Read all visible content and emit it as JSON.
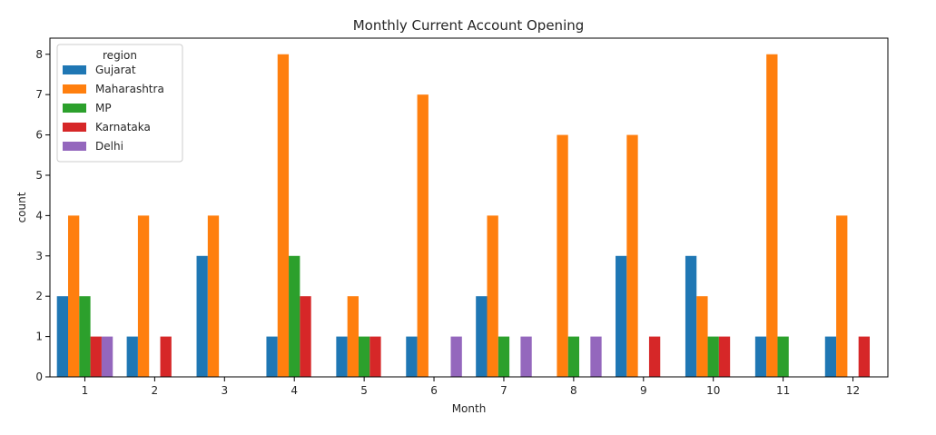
{
  "chart_data": {
    "type": "bar",
    "title": "Monthly Current Account Opening",
    "xlabel": "Month",
    "ylabel": "count",
    "ylim": [
      0,
      8.4
    ],
    "yticks": [
      0,
      1,
      2,
      3,
      4,
      5,
      6,
      7,
      8
    ],
    "grid": false,
    "legend": {
      "title": "region",
      "placement": "top-left"
    },
    "categories": [
      "1",
      "2",
      "3",
      "4",
      "5",
      "6",
      "7",
      "8",
      "9",
      "10",
      "11",
      "12"
    ],
    "series": [
      {
        "name": "Gujarat",
        "color": "#1f77b4",
        "values": [
          2,
          1,
          3,
          1,
          1,
          1,
          2,
          0,
          3,
          3,
          1,
          1
        ]
      },
      {
        "name": "Maharashtra",
        "color": "#ff7f0e",
        "values": [
          4,
          4,
          4,
          8,
          2,
          7,
          4,
          6,
          6,
          2,
          8,
          4
        ]
      },
      {
        "name": "MP",
        "color": "#2ca02c",
        "values": [
          2,
          0,
          0,
          3,
          1,
          0,
          1,
          1,
          0,
          1,
          1,
          0
        ]
      },
      {
        "name": "Karnataka",
        "color": "#d62728",
        "values": [
          1,
          1,
          0,
          2,
          1,
          0,
          0,
          0,
          1,
          1,
          0,
          1
        ]
      },
      {
        "name": "Delhi",
        "color": "#9467bd",
        "values": [
          1,
          0,
          0,
          0,
          0,
          1,
          1,
          1,
          0,
          0,
          0,
          0
        ]
      }
    ]
  }
}
